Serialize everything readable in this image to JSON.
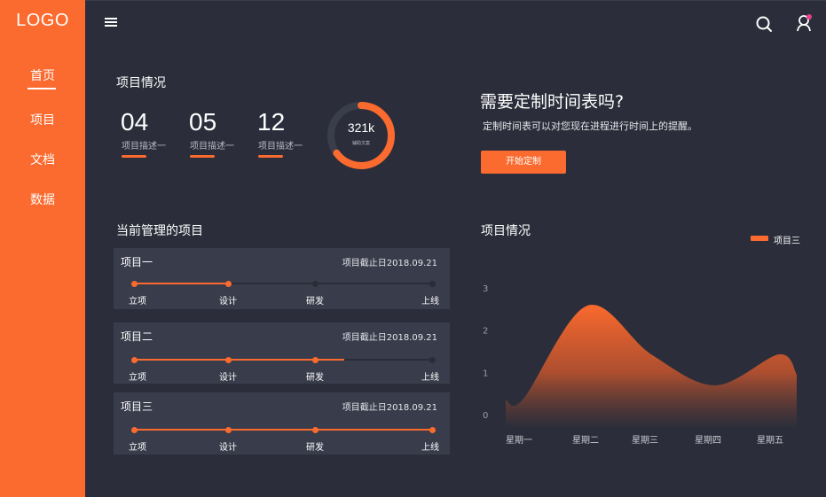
{
  "sidebar": {
    "logo": "LOGO",
    "items": [
      {
        "label": "首页",
        "active": true
      },
      {
        "label": "项目",
        "active": false
      },
      {
        "label": "文档",
        "active": false
      },
      {
        "label": "数据",
        "active": false
      }
    ]
  },
  "header": {
    "menu_icon": "hamburger-menu-icon",
    "search_icon": "search-icon",
    "user_icon": "user-icon",
    "notification_color": "#e83e8c"
  },
  "overview": {
    "title": "项目情况",
    "stats": [
      {
        "value": "04",
        "desc": "项目描述一"
      },
      {
        "value": "05",
        "desc": "项目描述一"
      },
      {
        "value": "12",
        "desc": "项目描述一"
      }
    ],
    "donut": {
      "value": "321k",
      "label": "辅助文案",
      "fraction": 0.65
    }
  },
  "promo": {
    "title": "需要定制时间表吗?",
    "desc": "定制时间表可以对您现在进程进行时间上的提醒。",
    "button": "开始定制"
  },
  "projects": {
    "title": "当前管理的项目",
    "stages": [
      "立项",
      "设计",
      "研发",
      "上线"
    ],
    "items": [
      {
        "name": "项目一",
        "deadline": "项目截止日2018.09.21",
        "progress": 0.315
      },
      {
        "name": "项目二",
        "deadline": "项目截止日2018.09.21",
        "progress": 0.705
      },
      {
        "name": "项目三",
        "deadline": "项目截止日2018.09.21",
        "progress": 1.0
      }
    ]
  },
  "accent_color": "#fb6a2e",
  "chart_data": {
    "type": "area",
    "title": "项目情况",
    "categories": [
      "星期一",
      "星期二",
      "星期三",
      "星期四",
      "星期五"
    ],
    "series": [
      {
        "name": "项目三",
        "values": [
          0.5,
          2.6,
          1.5,
          0.8,
          1.5
        ]
      }
    ],
    "y_ticks": [
      "0",
      "1",
      "2",
      "3"
    ],
    "ylim": [
      0,
      3
    ],
    "legend": "top-right",
    "grid": false
  }
}
